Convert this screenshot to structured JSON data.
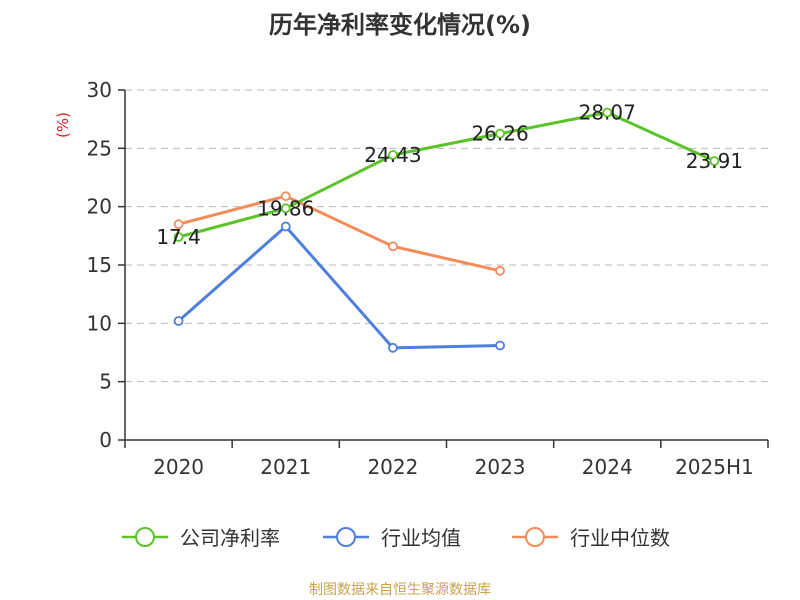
{
  "source": {
    "text": "制图数据来自恒生聚源数据库",
    "color": "#c8a34a"
  },
  "chart_data": {
    "type": "line",
    "title": "历年净利率变化情况(%)",
    "ylabel": "(%)",
    "ylabel_color": "#e02020",
    "categories": [
      "2020",
      "2021",
      "2022",
      "2023",
      "2024",
      "2025H1"
    ],
    "ylim": [
      0,
      30
    ],
    "yticks": [
      "0",
      "5",
      "10",
      "15",
      "20",
      "25",
      "30"
    ],
    "grid": true,
    "legend_position": "bottom",
    "series": [
      {
        "name": "公司净利率",
        "color": "#5cc42a",
        "values": [
          17.4,
          19.86,
          24.43,
          26.26,
          28.07,
          23.91
        ],
        "labels": [
          "17.4",
          "19.86",
          "24.43",
          "26.26",
          "28.07",
          "23.91"
        ]
      },
      {
        "name": "行业均值",
        "color": "#4f7fdd",
        "values": [
          10.2,
          18.3,
          7.9,
          8.1,
          null,
          null
        ],
        "labels": []
      },
      {
        "name": "行业中位数",
        "color": "#f28c5a",
        "values": [
          18.5,
          20.9,
          16.6,
          14.5,
          null,
          null
        ],
        "labels": []
      }
    ]
  }
}
